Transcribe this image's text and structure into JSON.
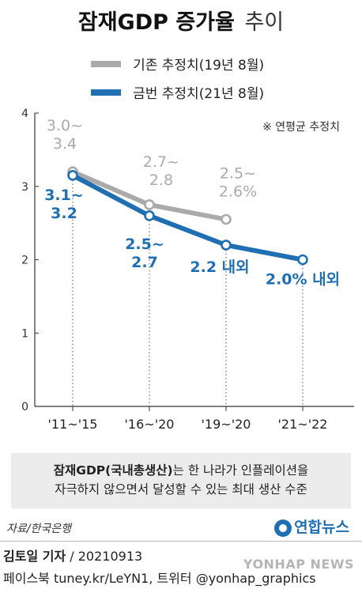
{
  "colors": {
    "gray": "#aaaaaa",
    "blue": "#1f6fb2",
    "axis": "#333333",
    "brand": "#1f6fb2"
  },
  "title": {
    "main": "잠재GDP 증가율",
    "sub": "추이"
  },
  "note": "※ 연평균 추정치",
  "chart_data": {
    "type": "line",
    "categories": [
      "'11~'15",
      "'16~'20",
      "'19~'20",
      "'21~'22"
    ],
    "y_ticks": [
      "0",
      "1",
      "2",
      "3",
      "4"
    ],
    "ylim": [
      0,
      4
    ],
    "grid": false,
    "legend_position": "top",
    "series": [
      {
        "name": "기존 추정치(19년 8월)",
        "color": "#aaaaaa",
        "values": [
          3.2,
          2.75,
          2.55,
          null
        ],
        "labels": [
          [
            "3.0~",
            "3.4"
          ],
          [
            "2.7~",
            "2.8"
          ],
          [
            "2.5~",
            "2.6%"
          ],
          []
        ]
      },
      {
        "name": "금번 추정치(21년 8월)",
        "color": "#1f6fb2",
        "values": [
          3.15,
          2.6,
          2.2,
          2.0
        ],
        "labels": [
          [
            "3.1~",
            "3.2"
          ],
          [
            "2.5~",
            "2.7"
          ],
          [
            "2.2 내외"
          ],
          [
            "2.0% 내외"
          ]
        ]
      }
    ]
  },
  "infobox": {
    "bold": "잠재GDP(국내총생산)",
    "line1_rest": "는 한 나라가 인플레이션을",
    "line2": "자극하지 않으면서 달성할 수 있는 최대 생산 수준"
  },
  "source": "자료/한국은행",
  "brand": "연합뉴스",
  "byline": {
    "name": "김토일 기자",
    "date": " / 20210913"
  },
  "social": "페이스북 tuney.kr/LeYN1, 트위터 @yonhap_graphics",
  "watermark": "YONHAP NEWS"
}
